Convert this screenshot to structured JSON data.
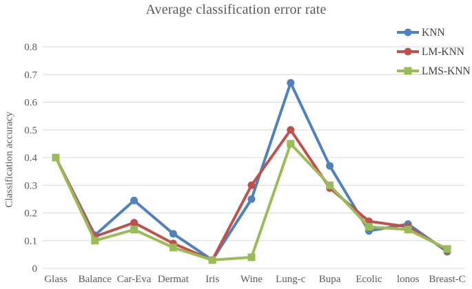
{
  "chart_data": {
    "type": "line",
    "title": "Average classification error rate",
    "ylabel": "Classification accuracy",
    "xlabel": "",
    "categories": [
      "Glass",
      "Balance",
      "Car-Eva",
      "Dermat",
      "Iris",
      "Wine",
      "Lung-c",
      "Bupa",
      "Ecolic",
      "lonos",
      "Breast-C"
    ],
    "series": [
      {
        "name": "KNN",
        "color": "#4F81BD",
        "marker": "circle",
        "values": [
          0.4,
          0.12,
          0.245,
          0.125,
          0.03,
          0.25,
          0.67,
          0.37,
          0.135,
          0.16,
          0.06
        ]
      },
      {
        "name": "LM-KNN",
        "color": "#C0504D",
        "marker": "circle",
        "values": [
          0.4,
          0.115,
          0.165,
          0.09,
          0.03,
          0.3,
          0.5,
          0.29,
          0.17,
          0.15,
          0.065
        ]
      },
      {
        "name": "LMS-KNN",
        "color": "#9BBB59",
        "marker": "square",
        "values": [
          0.4,
          0.1,
          0.14,
          0.075,
          0.03,
          0.04,
          0.45,
          0.3,
          0.15,
          0.14,
          0.07
        ]
      }
    ],
    "ylim": [
      0,
      0.8
    ],
    "yticks": [
      "0",
      "0.1",
      "0.2",
      "0.3",
      "0.4",
      "0.5",
      "0.6",
      "0.7",
      "0.8"
    ],
    "grid": true,
    "legend_position": "top-right-inside",
    "colors": {
      "text": "#595959",
      "legend_text": "#404040",
      "grid": "#D9D9D9",
      "background": "#FFFFFF"
    }
  }
}
